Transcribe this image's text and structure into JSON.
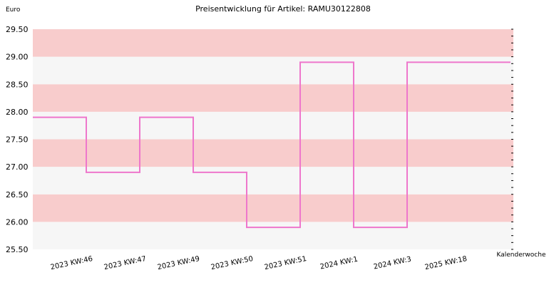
{
  "chart_data": {
    "type": "line",
    "step": true,
    "title": "Preisentwicklung für Artikel: RAMU30122808",
    "ylabel": "Euro",
    "xlabel": "Kalenderwoche",
    "ylim": [
      25.5,
      29.5
    ],
    "yticks": [
      "25.50",
      "26.00",
      "26.50",
      "27.00",
      "27.50",
      "28.00",
      "28.50",
      "29.00",
      "29.50"
    ],
    "categories": [
      "2023 KW:46",
      "2023 KW:47",
      "2023 KW:49",
      "2023 KW:50",
      "2023 KW:51",
      "2024 KW:1",
      "2024 KW:3",
      "2025 KW:18"
    ],
    "series": [
      {
        "values": [
          27.9,
          26.9,
          27.9,
          26.9,
          25.9,
          28.9,
          25.9,
          28.9
        ]
      }
    ],
    "colors": {
      "line": "#ee77cc",
      "band_pink": "#f8cccc",
      "band_light": "#f6f6f6"
    },
    "grid": "horizontal bands"
  }
}
